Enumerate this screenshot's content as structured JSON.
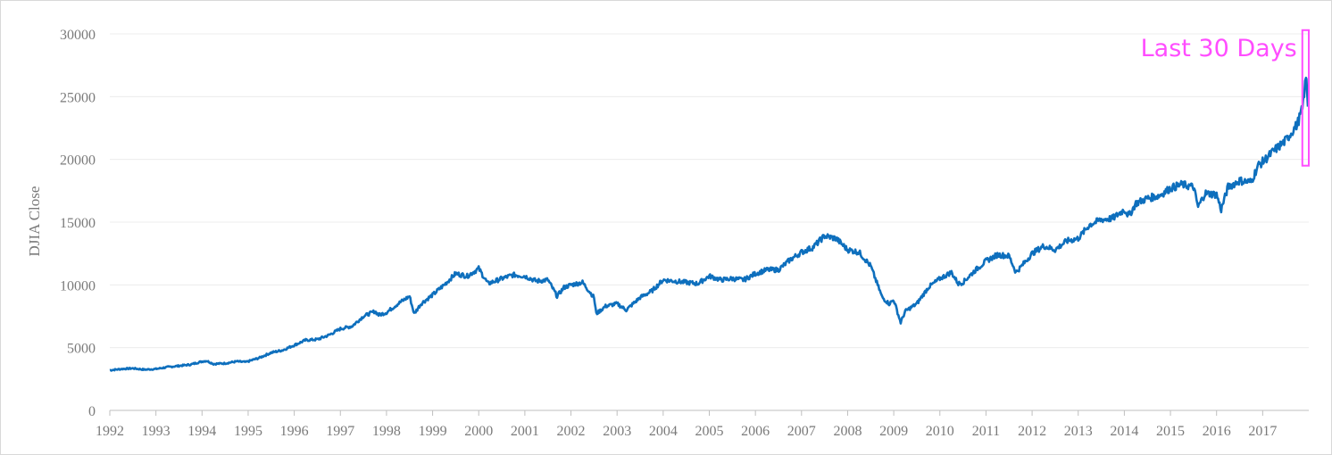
{
  "chart_data": {
    "type": "line",
    "ylabel": "DJIA Close",
    "xlabel": "",
    "xlim": [
      1992.0,
      2018.0
    ],
    "ylim": [
      0,
      30000
    ],
    "y_ticks": [
      0,
      5000,
      10000,
      15000,
      20000,
      25000,
      30000
    ],
    "x_ticks": [
      1992,
      1993,
      1994,
      1995,
      1996,
      1997,
      1998,
      1999,
      2000,
      2001,
      2002,
      2003,
      2004,
      2005,
      2006,
      2007,
      2008,
      2009,
      2010,
      2011,
      2012,
      2013,
      2014,
      2015,
      2016,
      2017
    ],
    "grid": "horizontal",
    "colors": {
      "line": "#0e6fbd",
      "annotation": "#ff4dff",
      "grid": "#ececec",
      "axis": "#bfbfbf"
    },
    "annotation": {
      "text": "Last 30 Days",
      "x_range": [
        2017.86,
        2018.0
      ],
      "y_range": [
        19500,
        30300
      ]
    },
    "series": [
      {
        "x": [
          1992.0,
          1992.25,
          1992.5,
          1992.75,
          1993.0,
          1993.25,
          1993.5,
          1993.75,
          1994.0,
          1994.1,
          1994.25,
          1994.5,
          1994.75,
          1994.95,
          1995.25,
          1995.5,
          1995.75,
          1996.0,
          1996.25,
          1996.5,
          1996.75,
          1997.0,
          1997.25,
          1997.5,
          1997.75,
          1997.83,
          1998.0,
          1998.25,
          1998.5,
          1998.6,
          1998.75,
          1999.0,
          1999.25,
          1999.5,
          1999.75,
          2000.0,
          2000.2,
          2000.5,
          2000.75,
          2001.0,
          2001.25,
          2001.5,
          2001.7,
          2001.85,
          2002.0,
          2002.25,
          2002.5,
          2002.55,
          2002.75,
          2003.0,
          2003.2,
          2003.5,
          2003.75,
          2004.0,
          2004.25,
          2004.5,
          2004.75,
          2005.0,
          2005.25,
          2005.5,
          2005.75,
          2006.0,
          2006.25,
          2006.5,
          2006.75,
          2007.0,
          2007.25,
          2007.5,
          2007.75,
          2008.0,
          2008.25,
          2008.5,
          2008.75,
          2008.9,
          2009.0,
          2009.15,
          2009.25,
          2009.5,
          2009.75,
          2010.0,
          2010.25,
          2010.4,
          2010.5,
          2010.75,
          2011.0,
          2011.25,
          2011.5,
          2011.65,
          2011.75,
          2012.0,
          2012.25,
          2012.5,
          2012.75,
          2013.0,
          2013.25,
          2013.5,
          2013.75,
          2014.0,
          2014.1,
          2014.25,
          2014.5,
          2014.75,
          2015.0,
          2015.25,
          2015.5,
          2015.6,
          2015.75,
          2016.0,
          2016.1,
          2016.25,
          2016.5,
          2016.75,
          2016.9,
          2017.0,
          2017.25,
          2017.5,
          2017.75,
          2017.86,
          2017.9,
          2017.94,
          2017.96,
          2017.98
        ],
        "y": [
          3200,
          3300,
          3350,
          3250,
          3300,
          3450,
          3550,
          3650,
          3900,
          3950,
          3700,
          3750,
          3900,
          3850,
          4200,
          4600,
          4800,
          5200,
          5600,
          5650,
          6000,
          6500,
          6700,
          7500,
          7900,
          7600,
          7800,
          8500,
          9100,
          7700,
          8500,
          9200,
          10000,
          10900,
          10700,
          11300,
          10100,
          10500,
          10800,
          10700,
          10300,
          10400,
          9100,
          9800,
          10000,
          10200,
          9000,
          7700,
          8300,
          8500,
          8000,
          9000,
          9500,
          10400,
          10300,
          10200,
          10100,
          10700,
          10400,
          10500,
          10400,
          10900,
          11200,
          11200,
          12000,
          12600,
          13000,
          13900,
          13700,
          12800,
          12600,
          11500,
          9000,
          8500,
          8800,
          7000,
          7900,
          8500,
          9800,
          10500,
          11000,
          10100,
          10200,
          11100,
          11900,
          12400,
          12300,
          11000,
          11400,
          12500,
          13100,
          12800,
          13500,
          13700,
          14800,
          15200,
          15300,
          16000,
          15500,
          16500,
          16900,
          17100,
          17700,
          18000,
          17800,
          16200,
          17300,
          17200,
          16000,
          17800,
          18300,
          18200,
          19500,
          19800,
          20700,
          21500,
          22800,
          24000,
          25300,
          26500,
          25800,
          24200
        ]
      }
    ]
  }
}
